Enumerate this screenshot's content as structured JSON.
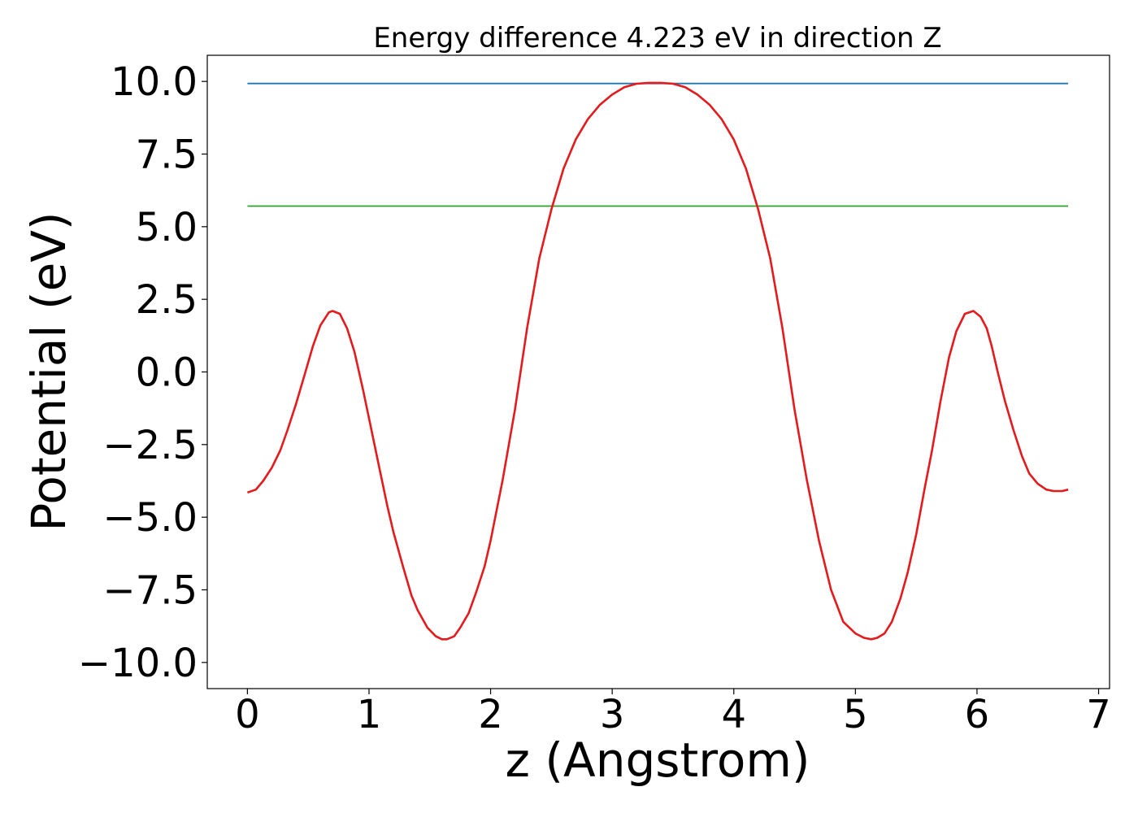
{
  "chart_data": {
    "type": "line",
    "title": "Energy difference 4.223 eV in direction Z",
    "xlabel": "z (Angstrom)",
    "ylabel": "Potential (eV)",
    "xlim": [
      -0.33,
      7.09
    ],
    "ylim": [
      -10.9,
      10.9
    ],
    "xticks": [
      0,
      1,
      2,
      3,
      4,
      5,
      6,
      7
    ],
    "xtick_labels": [
      "0",
      "1",
      "2",
      "3",
      "4",
      "5",
      "6",
      "7"
    ],
    "yticks": [
      10.0,
      7.5,
      5.0,
      2.5,
      0.0,
      -2.5,
      -5.0,
      -7.5,
      -10.0
    ],
    "ytick_labels": [
      "10.0",
      "7.5",
      "5.0",
      "2.5",
      "0.0",
      "−2.5",
      "−5.0",
      "−7.5",
      "−10.0"
    ],
    "grid": false,
    "series": [
      {
        "color": "#1f77b4",
        "x": [
          0,
          6.75
        ],
        "y": [
          9.93,
          9.93
        ]
      },
      {
        "color": "#2ca02c",
        "x": [
          0,
          6.75
        ],
        "y": [
          5.71,
          5.71
        ]
      },
      {
        "color": "#e41a1c",
        "x": [
          0.0,
          0.07,
          0.13,
          0.2,
          0.27,
          0.33,
          0.4,
          0.47,
          0.54,
          0.6,
          0.67,
          0.7,
          0.76,
          0.82,
          0.88,
          0.95,
          1.0,
          1.08,
          1.15,
          1.2,
          1.28,
          1.35,
          1.4,
          1.48,
          1.55,
          1.6,
          1.64,
          1.7,
          1.75,
          1.82,
          1.88,
          1.95,
          2.0,
          2.1,
          2.2,
          2.3,
          2.4,
          2.5,
          2.6,
          2.7,
          2.8,
          2.9,
          3.0,
          3.1,
          3.2,
          3.3,
          3.4,
          3.5,
          3.6,
          3.7,
          3.8,
          3.9,
          4.0,
          4.1,
          4.2,
          4.3,
          4.4,
          4.5,
          4.6,
          4.7,
          4.8,
          4.9,
          5.0,
          5.07,
          5.13,
          5.18,
          5.24,
          5.3,
          5.37,
          5.43,
          5.5,
          5.57,
          5.63,
          5.7,
          5.77,
          5.83,
          5.9,
          5.97,
          6.03,
          6.08,
          6.12,
          6.17,
          6.23,
          6.3,
          6.37,
          6.43,
          6.5,
          6.57,
          6.63,
          6.7,
          6.75
        ],
        "y": [
          -4.15,
          -4.05,
          -3.75,
          -3.3,
          -2.7,
          -2.0,
          -1.1,
          -0.1,
          0.9,
          1.6,
          2.05,
          2.1,
          2.0,
          1.5,
          0.7,
          -0.6,
          -1.6,
          -3.2,
          -4.6,
          -5.5,
          -6.7,
          -7.7,
          -8.2,
          -8.8,
          -9.1,
          -9.2,
          -9.2,
          -9.1,
          -8.8,
          -8.3,
          -7.6,
          -6.7,
          -5.8,
          -3.7,
          -1.3,
          1.5,
          3.9,
          5.6,
          7.0,
          8.0,
          8.7,
          9.2,
          9.55,
          9.8,
          9.92,
          9.95,
          9.95,
          9.92,
          9.8,
          9.55,
          9.2,
          8.7,
          8.0,
          7.0,
          5.6,
          3.9,
          1.5,
          -1.3,
          -3.7,
          -5.8,
          -7.5,
          -8.6,
          -9.0,
          -9.15,
          -9.2,
          -9.15,
          -9.0,
          -8.6,
          -7.8,
          -6.9,
          -5.6,
          -4.0,
          -2.7,
          -1.0,
          0.5,
          1.4,
          2.0,
          2.1,
          1.9,
          1.5,
          0.9,
          0.0,
          -1.0,
          -2.0,
          -2.9,
          -3.5,
          -3.85,
          -4.05,
          -4.1,
          -4.1,
          -4.05
        ]
      }
    ]
  }
}
